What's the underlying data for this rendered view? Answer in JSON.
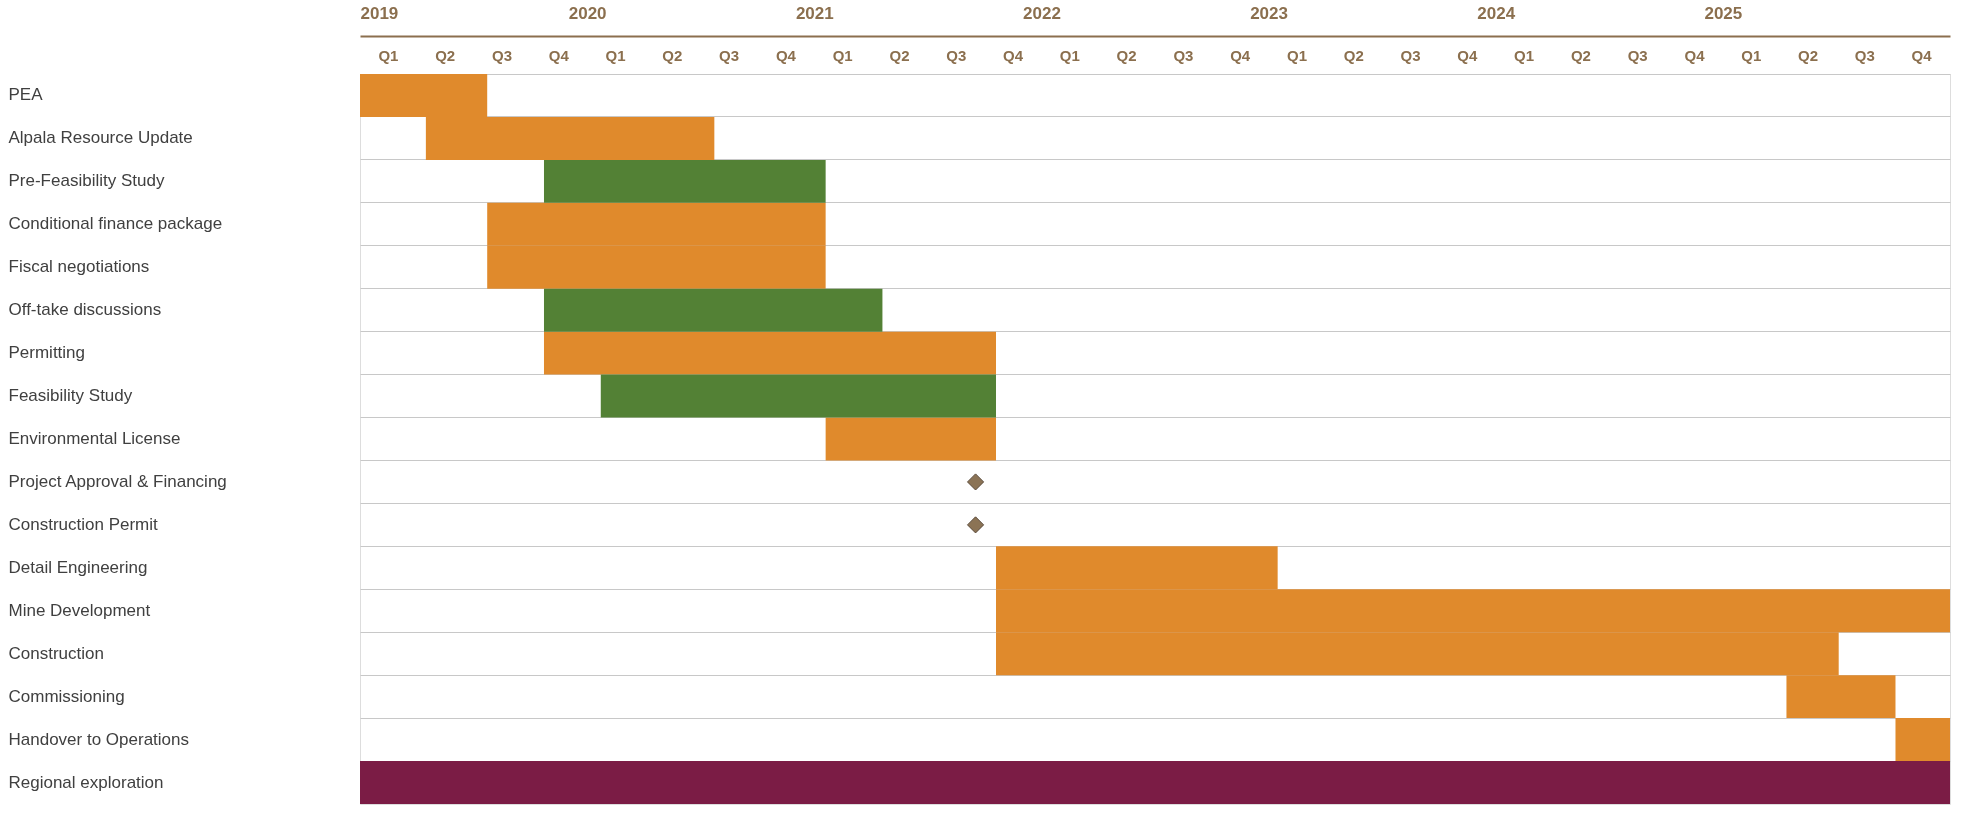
{
  "chart_data": {
    "type": "bar",
    "orientation": "horizontal",
    "grid": "y",
    "legend": false,
    "categories": [
      "PEA",
      "Alpala Resource Update",
      "Pre-Feasibility Study",
      "Conditional finance package",
      "Fiscal negotiations",
      "Off-take discussions",
      "Permitting",
      "Feasibility Study",
      "Environmental License",
      "Project Approval & Financing",
      "Construction Permit",
      "Detail Engineering",
      "Mine Development",
      "Construction",
      "Commissioning",
      "Handover to Operations",
      "Regional exploration"
    ],
    "xlim": [
      2019,
      2026
    ],
    "annotations": [
      "Q1",
      "Q2",
      "Q3",
      "Q4",
      "Q1",
      "Q2",
      "Q3",
      "Q4",
      "Q1",
      "Q2",
      "Q3",
      "Q4",
      "Q1",
      "Q2",
      "Q3",
      "Q4",
      "Q1",
      "Q2",
      "Q3",
      "Q4",
      "Q1",
      "Q2",
      "Q3",
      "Q4",
      "Q1",
      "Q2",
      "Q3",
      "Q4"
    ],
    "xticks": [
      2019,
      2020,
      2021,
      2022,
      2023,
      2024,
      2025
    ],
    "series": [
      {
        "color": "#e08a2c",
        "base": [
          2019,
          2019.29,
          null,
          2019.56,
          2019.56,
          null,
          2019.81,
          null,
          2021.05,
          null,
          null,
          2021.8,
          2021.8,
          2021.8,
          2025.28,
          2025.76,
          null
        ],
        "values": [
          0.56,
          1.27,
          null,
          1.49,
          1.49,
          null,
          1.99,
          null,
          0.75,
          null,
          null,
          1.24,
          4.2,
          3.71,
          0.48,
          0.24,
          null
        ]
      },
      {
        "color": "#538135",
        "base": [
          null,
          null,
          2019.81,
          null,
          null,
          2019.81,
          null,
          2020.06,
          null,
          null,
          null,
          null,
          null,
          null,
          null,
          null,
          null
        ],
        "values": [
          null,
          null,
          1.24,
          null,
          null,
          1.49,
          null,
          1.74,
          null,
          null,
          null,
          null,
          null,
          null,
          null,
          null,
          null
        ]
      },
      {
        "color": "#7b1c45",
        "base": [
          null,
          null,
          null,
          null,
          null,
          null,
          null,
          null,
          null,
          null,
          null,
          null,
          null,
          null,
          null,
          null,
          2019
        ],
        "values": [
          null,
          null,
          null,
          null,
          null,
          null,
          null,
          null,
          null,
          null,
          null,
          null,
          null,
          null,
          null,
          null,
          7
        ]
      },
      {
        "type": "scatter",
        "marker": "diamond",
        "color": "#8b7355",
        "values": [
          null,
          null,
          null,
          null,
          null,
          null,
          null,
          null,
          null,
          2021.71,
          2021.71,
          null,
          null,
          null,
          null,
          null,
          null
        ]
      }
    ]
  }
}
